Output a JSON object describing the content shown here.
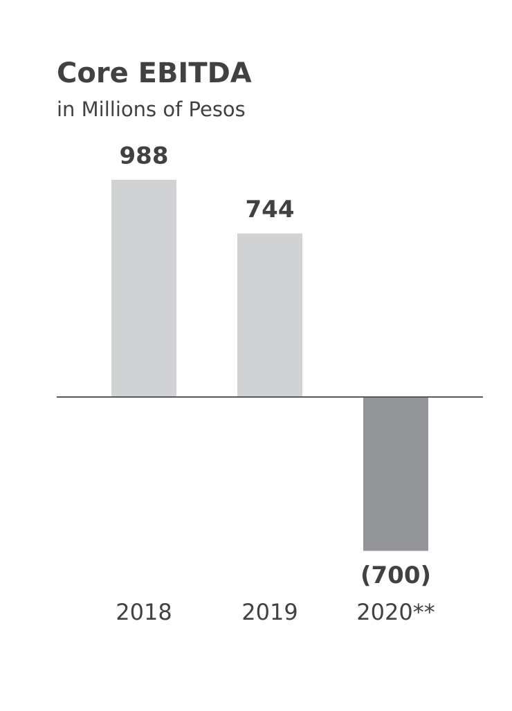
{
  "chart_data": {
    "type": "bar",
    "title": "Core EBITDA",
    "subtitle": "in Millions of Pesos",
    "categories": [
      "2018",
      "2019",
      "2020**"
    ],
    "values": [
      988,
      744,
      -700
    ],
    "value_labels": [
      "988",
      "744",
      "(700)"
    ],
    "colors": [
      "#d1d2d4",
      "#d1d2d4",
      "#939598"
    ]
  }
}
